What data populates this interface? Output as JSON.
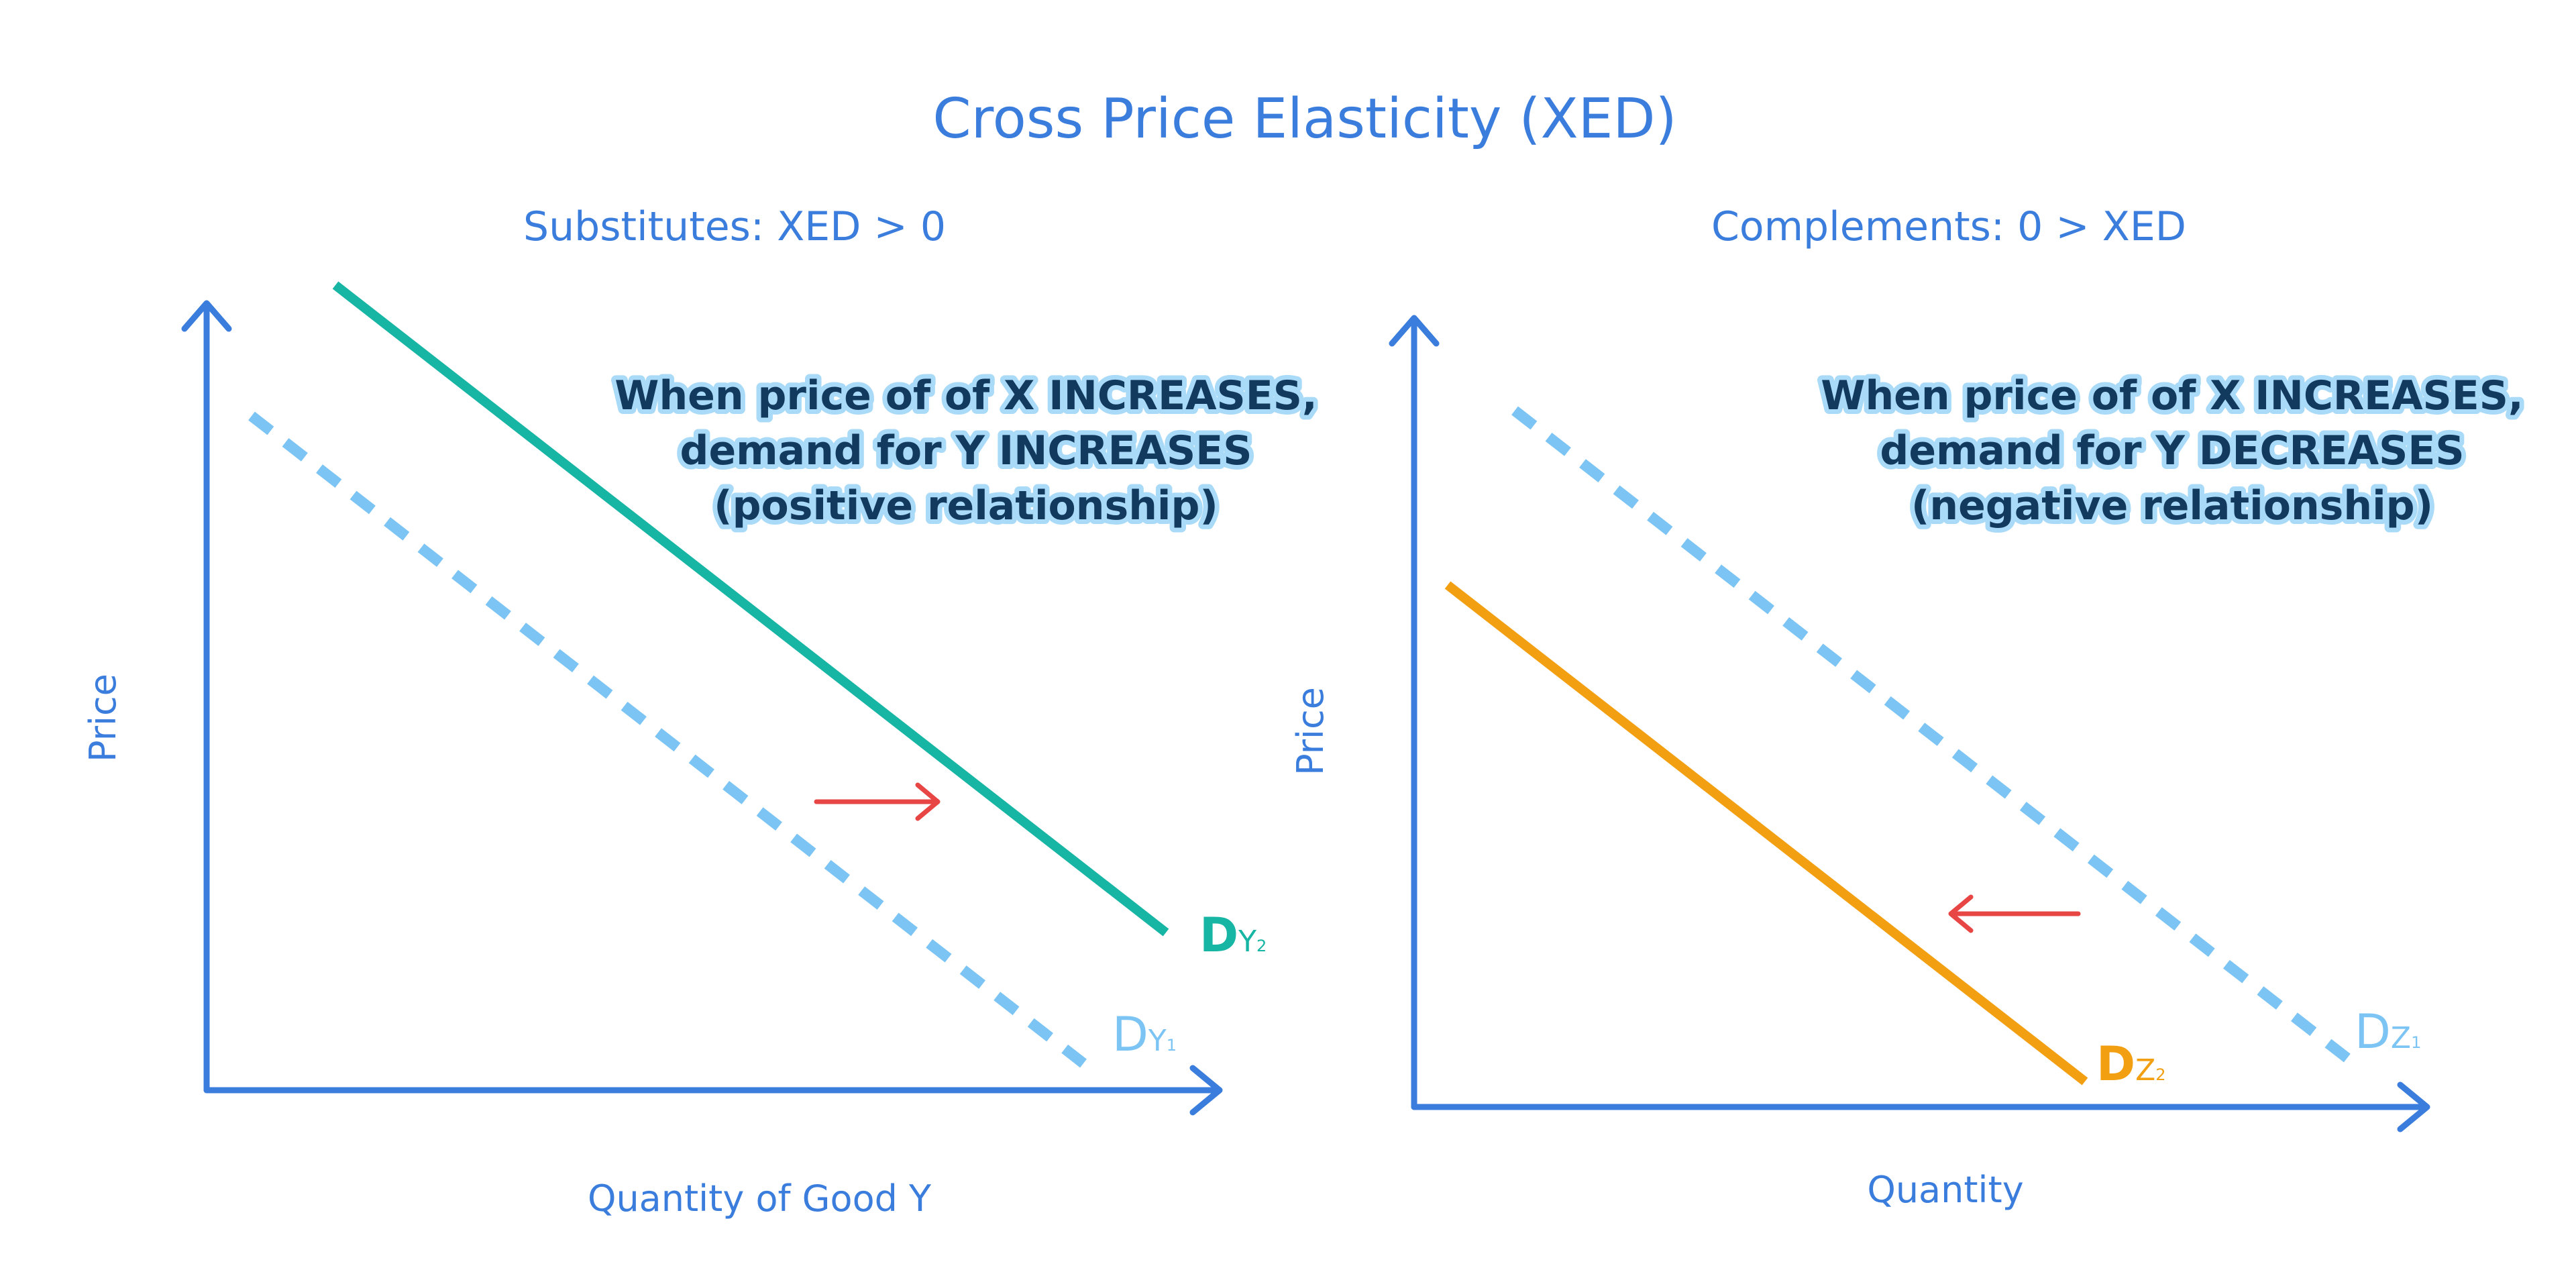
{
  "title": "Cross Price Elasticity (XED)",
  "colors": {
    "axis": "#3b7ddd",
    "label_text": "#3b7ddd",
    "annotation_text": "#123a5e",
    "annotation_halo": "#a9daf7",
    "dashed_curve": "#7cc4f4",
    "substitute_shifted_curve": "#17b5a4",
    "complement_shifted_curve": "#f29f12",
    "shift_arrow": "#e84545"
  },
  "panels": [
    {
      "subtitle": "Substitutes: XED > 0",
      "ylabel": "Price",
      "xlabel": "Quantity of Good Y",
      "annotation": [
        "When price of of X INCREASES,",
        "demand for Y INCREASES",
        "(positive relationship)"
      ],
      "original_curve": {
        "letter": "D",
        "subscript": "Y",
        "sub_index": "1",
        "style": "dashed"
      },
      "shifted_curve": {
        "letter": "D",
        "subscript": "Y",
        "sub_index": "2",
        "style": "solid"
      },
      "shift_direction": "right"
    },
    {
      "subtitle": "Complements: 0 > XED",
      "ylabel": "Price",
      "xlabel": "Quantity",
      "annotation": [
        "When price of of X INCREASES,",
        "demand for Y DECREASES",
        "(negative relationship)"
      ],
      "original_curve": {
        "letter": "D",
        "subscript": "Z",
        "sub_index": "1",
        "style": "dashed"
      },
      "shifted_curve": {
        "letter": "D",
        "subscript": "Z",
        "sub_index": "2",
        "style": "solid"
      },
      "shift_direction": "left"
    }
  ]
}
